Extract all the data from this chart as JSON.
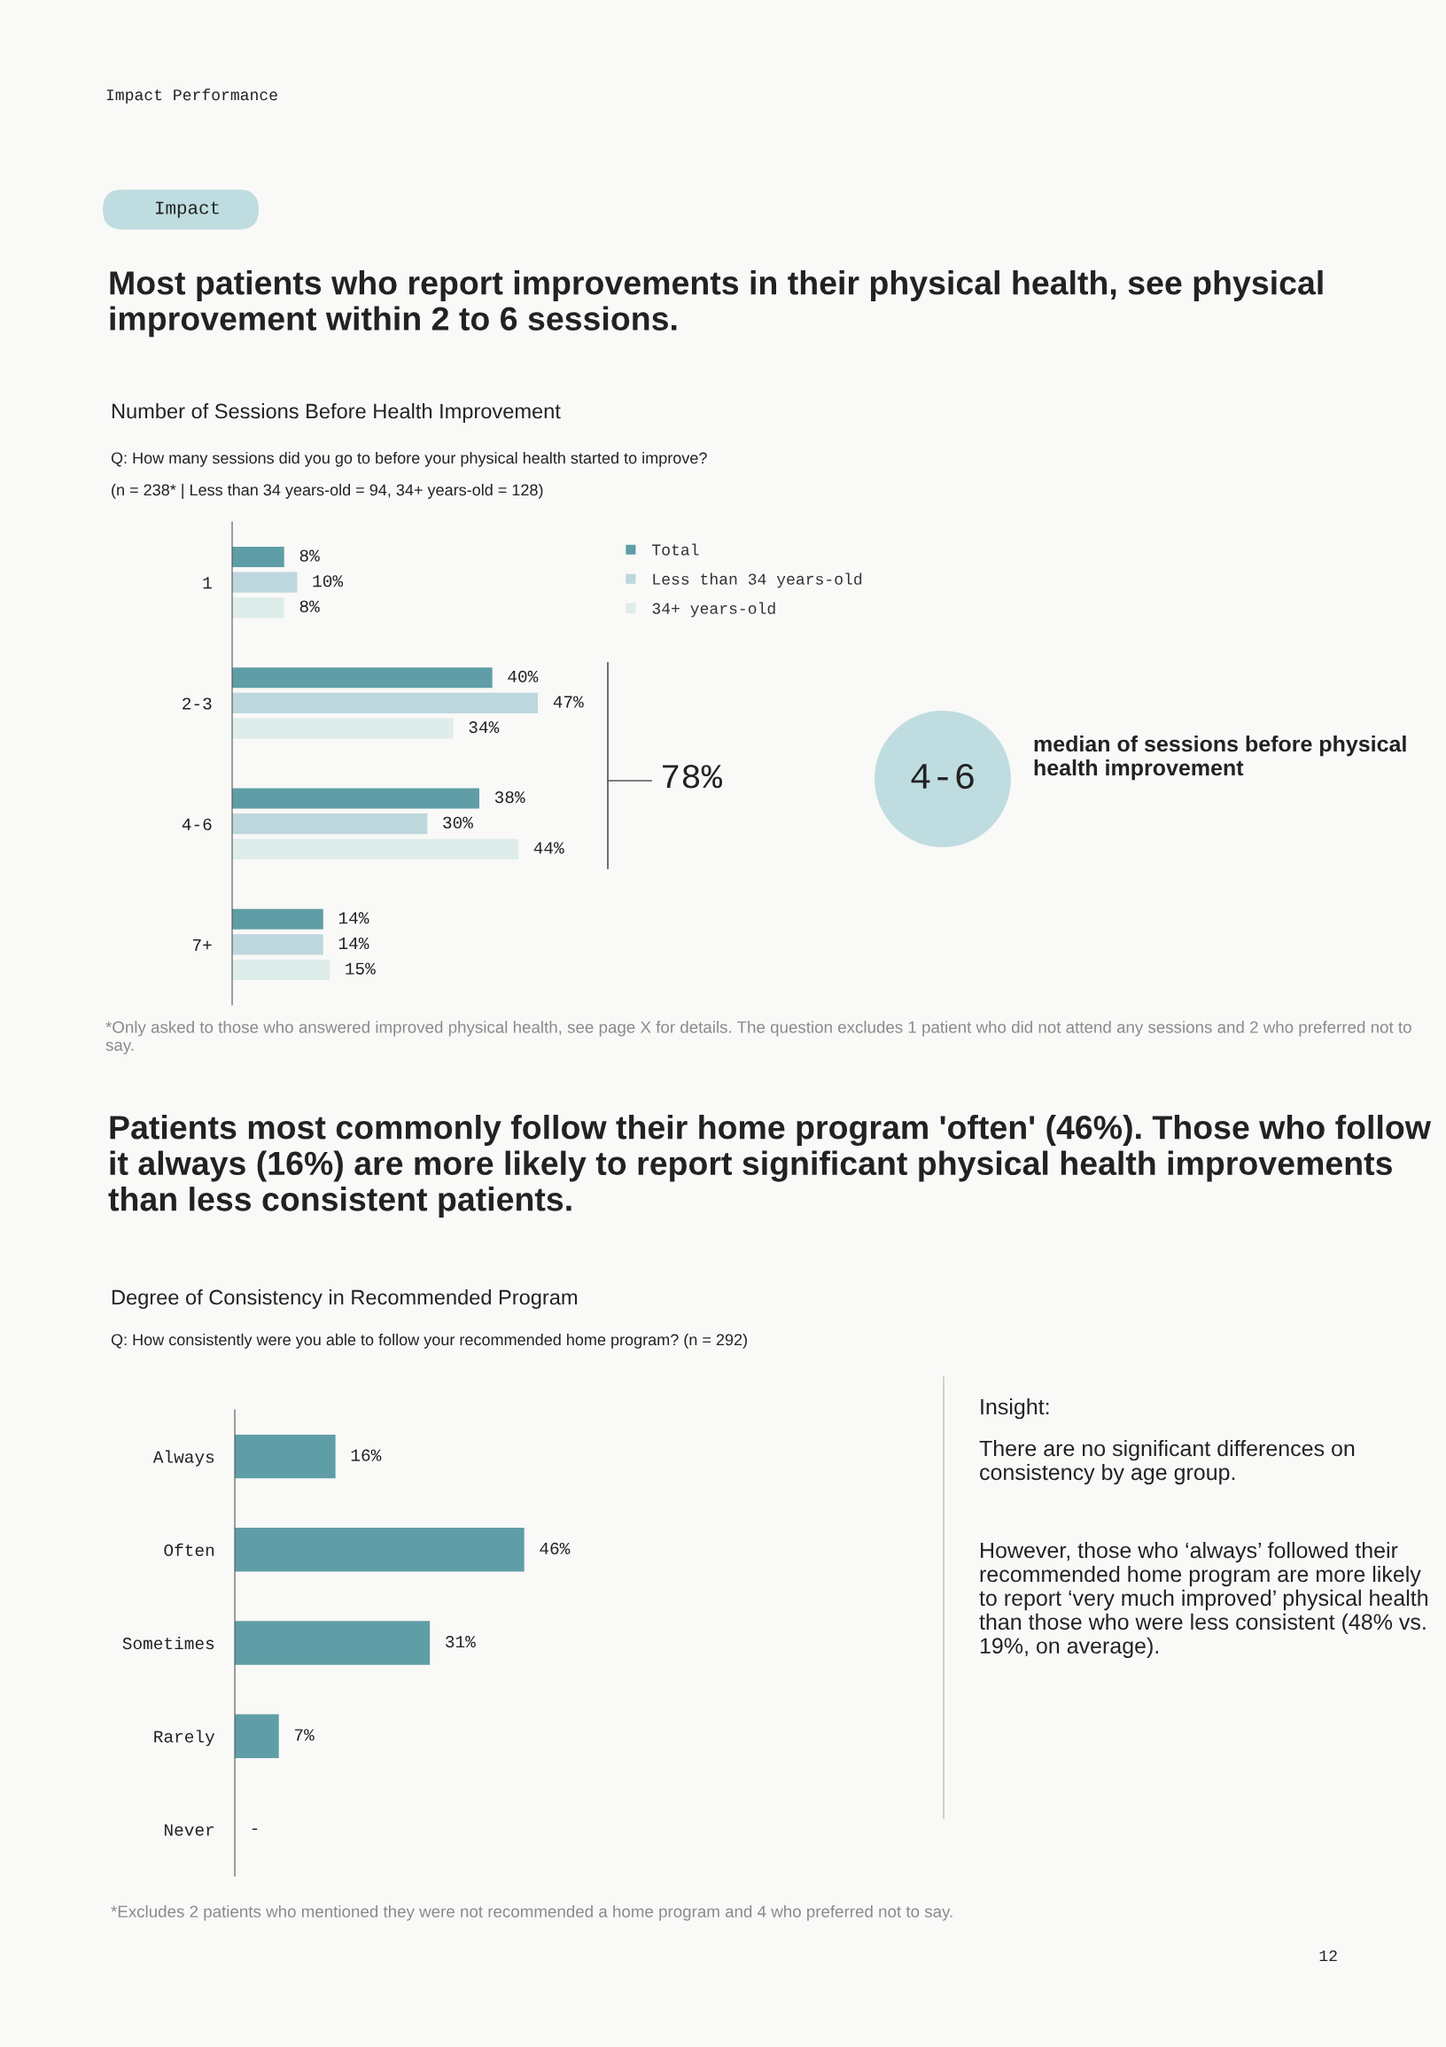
{
  "chart_data": [
    {
      "type": "bar",
      "orientation": "horizontal",
      "title": "Number of Sessions Before Health Improvement",
      "subtitle": "Q: How many sessions did you go to before your physical health started to improve?",
      "categories": [
        "1",
        "2-3",
        "4-6",
        "7+"
      ],
      "series": [
        {
          "name": "Total",
          "color": "#5f9ea6",
          "values": [
            8,
            40,
            38,
            14
          ],
          "value_labels": [
            "8%",
            "40%",
            "38%",
            "14%"
          ]
        },
        {
          "name": "Less than 34 years-old",
          "color": "#bdd7dd",
          "values": [
            10,
            47,
            30,
            14
          ],
          "value_labels": [
            "10%",
            "47%",
            "30%",
            "14%"
          ]
        },
        {
          "name": "34+ years-old",
          "color": "#deecea",
          "values": [
            8,
            34,
            44,
            15
          ],
          "value_labels": [
            "8%",
            "34%",
            "44%",
            "15%"
          ]
        }
      ],
      "legend": "top right",
      "grid": false,
      "annotations": [
        "Impact Performance",
        "Impact",
        "Most patients who report improvements in their physical health, see physical improvement within 2 to 6 sessions.",
        "(n = 238* | Less than 34 years-old = 94, 34+ years-old = 128)",
        "78%",
        "4-6",
        "median of sessions before physical health improvement",
        "*Only asked to those who answered improved physical health, see page X for details. The question excludes 1 patient who did not attend any sessions and 2 who preferred not to say."
      ]
    },
    {
      "type": "bar",
      "orientation": "horizontal",
      "title": "Degree of Consistency in Recommended Program",
      "subtitle": "Q: How consistently were you able to follow your recommended home program? (n = 292)",
      "categories": [
        "Always",
        "Often",
        "Sometimes",
        "Rarely",
        "Never"
      ],
      "values": [
        16,
        46,
        31,
        7,
        null
      ],
      "value_labels": [
        "16%",
        "46%",
        "31%",
        "7%",
        "-"
      ],
      "color": "#5f9ea6",
      "grid": false,
      "annotations": [
        "Patients most commonly follow their home program 'often' (46%). Those who follow it always (16%) are more likely to report significant physical health improvements than less consistent patients.",
        "Insight:",
        "There are no significant differences on consistency by age group.",
        "However, those who ‘always’ followed their recommended home program are more likely to report ‘very much improved’ physical health than those who were less consistent (48% vs. 19%, on average).",
        "*Excludes 2 patients who mentioned they were not recommended a home program and 4 who preferred not to say.",
        "12"
      ]
    }
  ]
}
